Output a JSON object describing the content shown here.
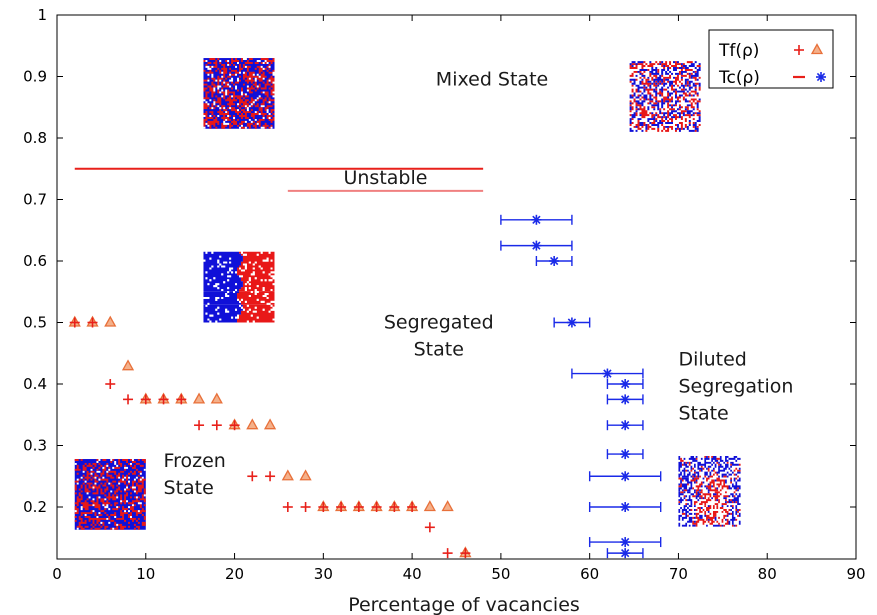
{
  "chart_data": {
    "type": "scatter",
    "title": "",
    "xlabel": "Percentage of vacancies",
    "ylabel": "",
    "xlim": [
      0,
      90
    ],
    "ylim": [
      0.125,
      1
    ],
    "x_ticks": [
      0,
      10,
      20,
      30,
      40,
      50,
      60,
      70,
      80,
      90
    ],
    "y_ticks": [
      0.2,
      0.3,
      0.4,
      0.5,
      0.6,
      0.7,
      0.8,
      0.9,
      1
    ],
    "y_tick_labels": [
      "0.2",
      "0.3",
      "0.4",
      "0.5",
      "0.6",
      "0.7",
      "0.8",
      "0.9",
      "1"
    ],
    "legend": {
      "position": "top-right",
      "entries": [
        {
          "label": "Tf(ρ)",
          "markers": [
            "plus",
            "triangle"
          ]
        },
        {
          "label": "Tc(ρ)",
          "markers": [
            "line",
            "star"
          ]
        }
      ]
    },
    "colors": {
      "red": "#e8201a",
      "orange": "#e8703a",
      "pink_line": "#f08080",
      "blue": "#1a2ae8",
      "dark_blue": "#0a0aa8"
    },
    "series": [
      {
        "name": "Tf(ρ)",
        "marker": "plus",
        "points": [
          [
            2,
            0.5
          ],
          [
            4,
            0.5
          ],
          [
            6,
            0.4
          ],
          [
            8,
            0.375
          ],
          [
            10,
            0.375
          ],
          [
            12,
            0.375
          ],
          [
            14,
            0.375
          ],
          [
            16,
            0.333
          ],
          [
            18,
            0.333
          ],
          [
            20,
            0.333
          ],
          [
            22,
            0.25
          ],
          [
            24,
            0.25
          ],
          [
            26,
            0.2
          ],
          [
            28,
            0.2
          ],
          [
            30,
            0.2
          ],
          [
            32,
            0.2
          ],
          [
            34,
            0.2
          ],
          [
            36,
            0.2
          ],
          [
            38,
            0.2
          ],
          [
            40,
            0.2
          ],
          [
            42,
            0.167
          ],
          [
            44,
            0.125
          ],
          [
            46,
            0.125
          ]
        ]
      },
      {
        "name": "Tf(ρ)",
        "marker": "triangle",
        "points": [
          [
            2,
            0.5
          ],
          [
            4,
            0.5
          ],
          [
            6,
            0.5
          ],
          [
            8,
            0.429
          ],
          [
            10,
            0.375
          ],
          [
            12,
            0.375
          ],
          [
            14,
            0.375
          ],
          [
            16,
            0.375
          ],
          [
            18,
            0.375
          ],
          [
            20,
            0.333
          ],
          [
            22,
            0.333
          ],
          [
            24,
            0.333
          ],
          [
            26,
            0.25
          ],
          [
            28,
            0.25
          ],
          [
            30,
            0.2
          ],
          [
            32,
            0.2
          ],
          [
            34,
            0.2
          ],
          [
            36,
            0.2
          ],
          [
            38,
            0.2
          ],
          [
            40,
            0.2
          ],
          [
            42,
            0.2
          ],
          [
            44,
            0.2
          ],
          [
            46,
            0.125
          ]
        ]
      },
      {
        "name": "Tc(ρ)",
        "marker": "star",
        "points": [
          {
            "x": 54,
            "y": 0.667,
            "xerr": [
              50,
              58
            ]
          },
          {
            "x": 54,
            "y": 0.625,
            "xerr": [
              50,
              58
            ]
          },
          {
            "x": 56,
            "y": 0.6,
            "xerr": [
              54,
              58
            ]
          },
          {
            "x": 58,
            "y": 0.5,
            "xerr": [
              56,
              60
            ]
          },
          {
            "x": 62,
            "y": 0.417,
            "xerr": [
              58,
              66
            ]
          },
          {
            "x": 64,
            "y": 0.4,
            "xerr": [
              62,
              66
            ]
          },
          {
            "x": 64,
            "y": 0.375,
            "xerr": [
              62,
              66
            ]
          },
          {
            "x": 64,
            "y": 0.333,
            "xerr": [
              62,
              66
            ]
          },
          {
            "x": 64,
            "y": 0.286,
            "xerr": [
              62,
              66
            ]
          },
          {
            "x": 64,
            "y": 0.25,
            "xerr": [
              60,
              68
            ]
          },
          {
            "x": 64,
            "y": 0.2,
            "xerr": [
              60,
              68
            ]
          },
          {
            "x": 64,
            "y": 0.143,
            "xerr": [
              60,
              68
            ]
          },
          {
            "x": 64,
            "y": 0.125,
            "xerr": [
              62,
              66
            ]
          }
        ]
      },
      {
        "name": "Tc(ρ)",
        "marker": "line",
        "segments": [
          {
            "x": [
              2,
              48
            ],
            "y": 0.75,
            "color": "red"
          },
          {
            "x": 26,
            "x_end": 48,
            "y": 0.714,
            "color": "pink_line"
          }
        ]
      }
    ],
    "annotations": [
      {
        "id": "mixed",
        "lines": [
          "Mixed State"
        ],
        "x": 49,
        "y": 0.885
      },
      {
        "id": "unstable",
        "lines": [
          "Unstable"
        ],
        "x": 37,
        "y": 0.725
      },
      {
        "id": "segregated",
        "lines": [
          "Segregated",
          "State"
        ],
        "x": 43,
        "y": 0.49
      },
      {
        "id": "diluted",
        "lines": [
          "Diluted",
          "Segregation",
          "State"
        ],
        "x": 70,
        "y": 0.43
      },
      {
        "id": "frozen",
        "lines": [
          "Frozen",
          "State"
        ],
        "x": 12,
        "y": 0.265
      }
    ],
    "insets": [
      {
        "id": "mixed-dense",
        "pattern": "mixed-dense",
        "x": [
          16.5,
          24.5
        ],
        "y": [
          0.815,
          0.93
        ]
      },
      {
        "id": "mixed-sparse",
        "pattern": "mixed-sparse",
        "x": [
          64.5,
          72.5
        ],
        "y": [
          0.81,
          0.925
        ]
      },
      {
        "id": "segregated",
        "pattern": "segregated",
        "x": [
          16.5,
          24.5
        ],
        "y": [
          0.5,
          0.615
        ]
      },
      {
        "id": "frozen",
        "pattern": "frozen",
        "x": [
          2,
          10
        ],
        "y": [
          0.163,
          0.278
        ]
      },
      {
        "id": "diluted",
        "pattern": "diluted",
        "x": [
          70,
          77
        ],
        "y": [
          0.168,
          0.283
        ]
      }
    ]
  }
}
